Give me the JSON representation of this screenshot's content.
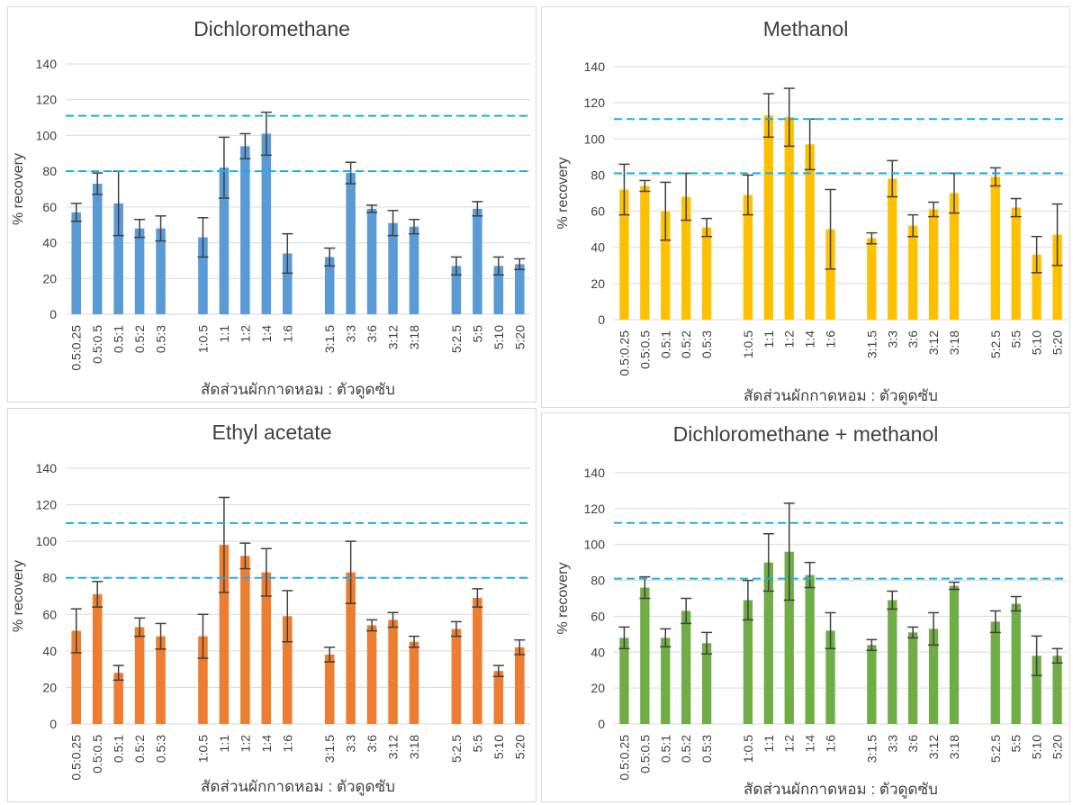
{
  "chart_data": [
    {
      "type": "bar",
      "title": "Dichloromethane",
      "ylabel": "% recovery",
      "xlabel": "สัดส่วนผักกาดหอม : ตัวดูดซับ",
      "ylim": [
        0,
        140
      ],
      "yticks": [
        0,
        20,
        40,
        60,
        80,
        100,
        120,
        140
      ],
      "grid": true,
      "color": "#5B9BD5",
      "reference_lines": [
        80,
        111
      ],
      "categories": [
        "0.5:0.25",
        "0.5:0.5",
        "0.5:1",
        "0.5:2",
        "0.5:3",
        "1:0.5",
        "1:1",
        "1:2",
        "1:4",
        "1:6",
        "3:1.5",
        "3:3",
        "3:6",
        "3:12",
        "3:18",
        "5:2.5",
        "5:5",
        "5:10",
        "5:20"
      ],
      "groups": [
        5,
        5,
        5,
        4
      ],
      "values": [
        57,
        73,
        62,
        48,
        48,
        43,
        82,
        94,
        101,
        34,
        32,
        79,
        59,
        51,
        49,
        27,
        59,
        27,
        28
      ],
      "errors": [
        5,
        6,
        18,
        5,
        7,
        11,
        17,
        7,
        12,
        11,
        5,
        6,
        2,
        7,
        4,
        5,
        4,
        5,
        3
      ]
    },
    {
      "type": "bar",
      "title": "Methanol",
      "ylabel": "% recovery",
      "xlabel": "สัดส่วนผักกาดหอม : ตัวดูดซับ",
      "ylim": [
        0,
        140
      ],
      "yticks": [
        0,
        20,
        40,
        60,
        80,
        100,
        120,
        140
      ],
      "grid": true,
      "color": "#FFC000",
      "reference_lines": [
        81,
        111
      ],
      "categories": [
        "0.5:0.25",
        "0.5:0.5",
        "0.5:1",
        "0.5:2",
        "0.5:3",
        "1:0.5",
        "1:1",
        "1:2",
        "1:4",
        "1:6",
        "3:1.5",
        "3:3",
        "3:6",
        "3:12",
        "3:18",
        "5:2.5",
        "5:5",
        "5:10",
        "5:20"
      ],
      "groups": [
        5,
        5,
        5,
        4
      ],
      "values": [
        72,
        74,
        60,
        68,
        51,
        69,
        113,
        112,
        97,
        50,
        45,
        78,
        52,
        61,
        70,
        79,
        62,
        36,
        47
      ],
      "errors": [
        14,
        3,
        16,
        13,
        5,
        11,
        12,
        16,
        14,
        22,
        3,
        10,
        6,
        4,
        11,
        5,
        5,
        10,
        17
      ]
    },
    {
      "type": "bar",
      "title": "Ethyl acetate",
      "ylabel": "% recovery",
      "xlabel": "สัดส่วนผักกาดหอม : ตัวดูดซับ",
      "ylim": [
        0,
        140
      ],
      "yticks": [
        0,
        20,
        40,
        60,
        80,
        100,
        120,
        140
      ],
      "grid": true,
      "color": "#ED7D31",
      "reference_lines": [
        80,
        110
      ],
      "categories": [
        "0.5:0.25",
        "0.5:0.5",
        "0.5:1",
        "0.5:2",
        "0.5:3",
        "1:0.5",
        "1:1",
        "1:2",
        "1:4",
        "1:6",
        "3:1.5",
        "3:3",
        "3:6",
        "3:12",
        "3:18",
        "5:2.5",
        "5:5",
        "5:10",
        "5:20"
      ],
      "groups": [
        5,
        5,
        5,
        4
      ],
      "values": [
        51,
        71,
        28,
        53,
        48,
        48,
        98,
        92,
        83,
        59,
        38,
        83,
        54,
        57,
        45,
        52,
        69,
        29,
        42
      ],
      "errors": [
        12,
        7,
        4,
        5,
        7,
        12,
        26,
        7,
        13,
        14,
        4,
        17,
        3,
        4,
        3,
        4,
        5,
        3,
        4
      ]
    },
    {
      "type": "bar",
      "title": "Dichloromethane + methanol",
      "ylabel": "% recovery",
      "xlabel": "สัดส่วนผักกาดหอม : ตัวดูดซับ",
      "ylim": [
        0,
        140
      ],
      "yticks": [
        0,
        20,
        40,
        60,
        80,
        100,
        120,
        140
      ],
      "grid": true,
      "color": "#70AD47",
      "reference_lines": [
        81,
        112
      ],
      "categories": [
        "0.5:0.25",
        "0.5:0.5",
        "0.5:1",
        "0.5:2",
        "0.5:3",
        "1:0.5",
        "1:1",
        "1:2",
        "1:4",
        "1:6",
        "3:1.5",
        "3:3",
        "3:6",
        "3:12",
        "3:18",
        "5:2.5",
        "5:5",
        "5:10",
        "5:20"
      ],
      "groups": [
        5,
        5,
        5,
        4
      ],
      "values": [
        48,
        76,
        48,
        63,
        45,
        69,
        90,
        96,
        83,
        52,
        44,
        69,
        51,
        53,
        77,
        57,
        67,
        38,
        38
      ],
      "errors": [
        6,
        6,
        5,
        7,
        6,
        11,
        16,
        27,
        7,
        10,
        3,
        5,
        3,
        9,
        2,
        6,
        4,
        11,
        4
      ]
    }
  ]
}
